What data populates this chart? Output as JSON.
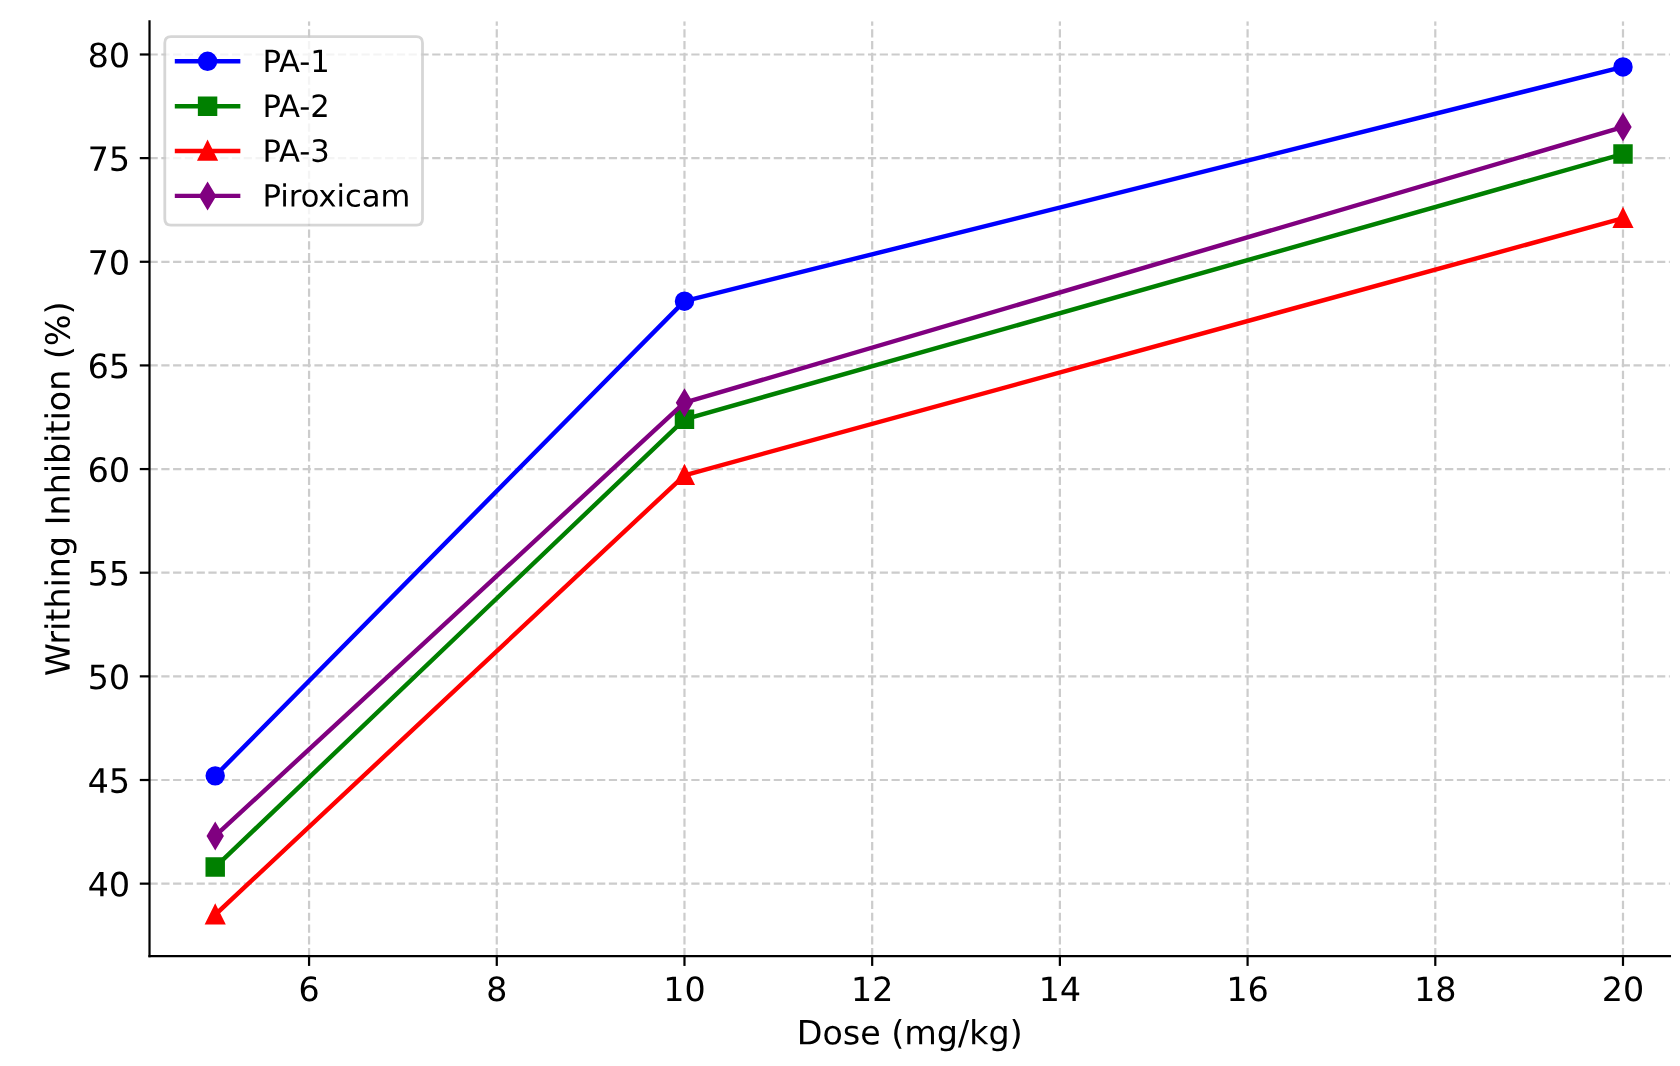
{
  "chart_data": {
    "type": "line",
    "xlabel": "Dose (mg/kg)",
    "ylabel": "Writhing Inhibition (%)",
    "x": [
      5,
      10,
      20
    ],
    "series": [
      {
        "name": "PA-1",
        "color": "#0000ff",
        "marker": "circle",
        "values": [
          45.2,
          68.1,
          79.4
        ]
      },
      {
        "name": "PA-2",
        "color": "#008000",
        "marker": "square",
        "values": [
          40.8,
          62.4,
          75.2
        ]
      },
      {
        "name": "PA-3",
        "color": "#ff0000",
        "marker": "triangle",
        "values": [
          38.5,
          59.7,
          72.1
        ]
      },
      {
        "name": "Piroxicam",
        "color": "#800080",
        "marker": "diamond",
        "values": [
          42.3,
          63.2,
          76.5
        ]
      }
    ],
    "xlim": [
      4.3,
      20.5
    ],
    "xticks": [
      6,
      8,
      10,
      12,
      14,
      16,
      18,
      20
    ],
    "ylim": [
      36.5,
      81.6
    ],
    "yticks": [
      40,
      45,
      50,
      55,
      60,
      65,
      70,
      75,
      80
    ],
    "grid": true,
    "legend": "top left",
    "line_style": "solid"
  }
}
